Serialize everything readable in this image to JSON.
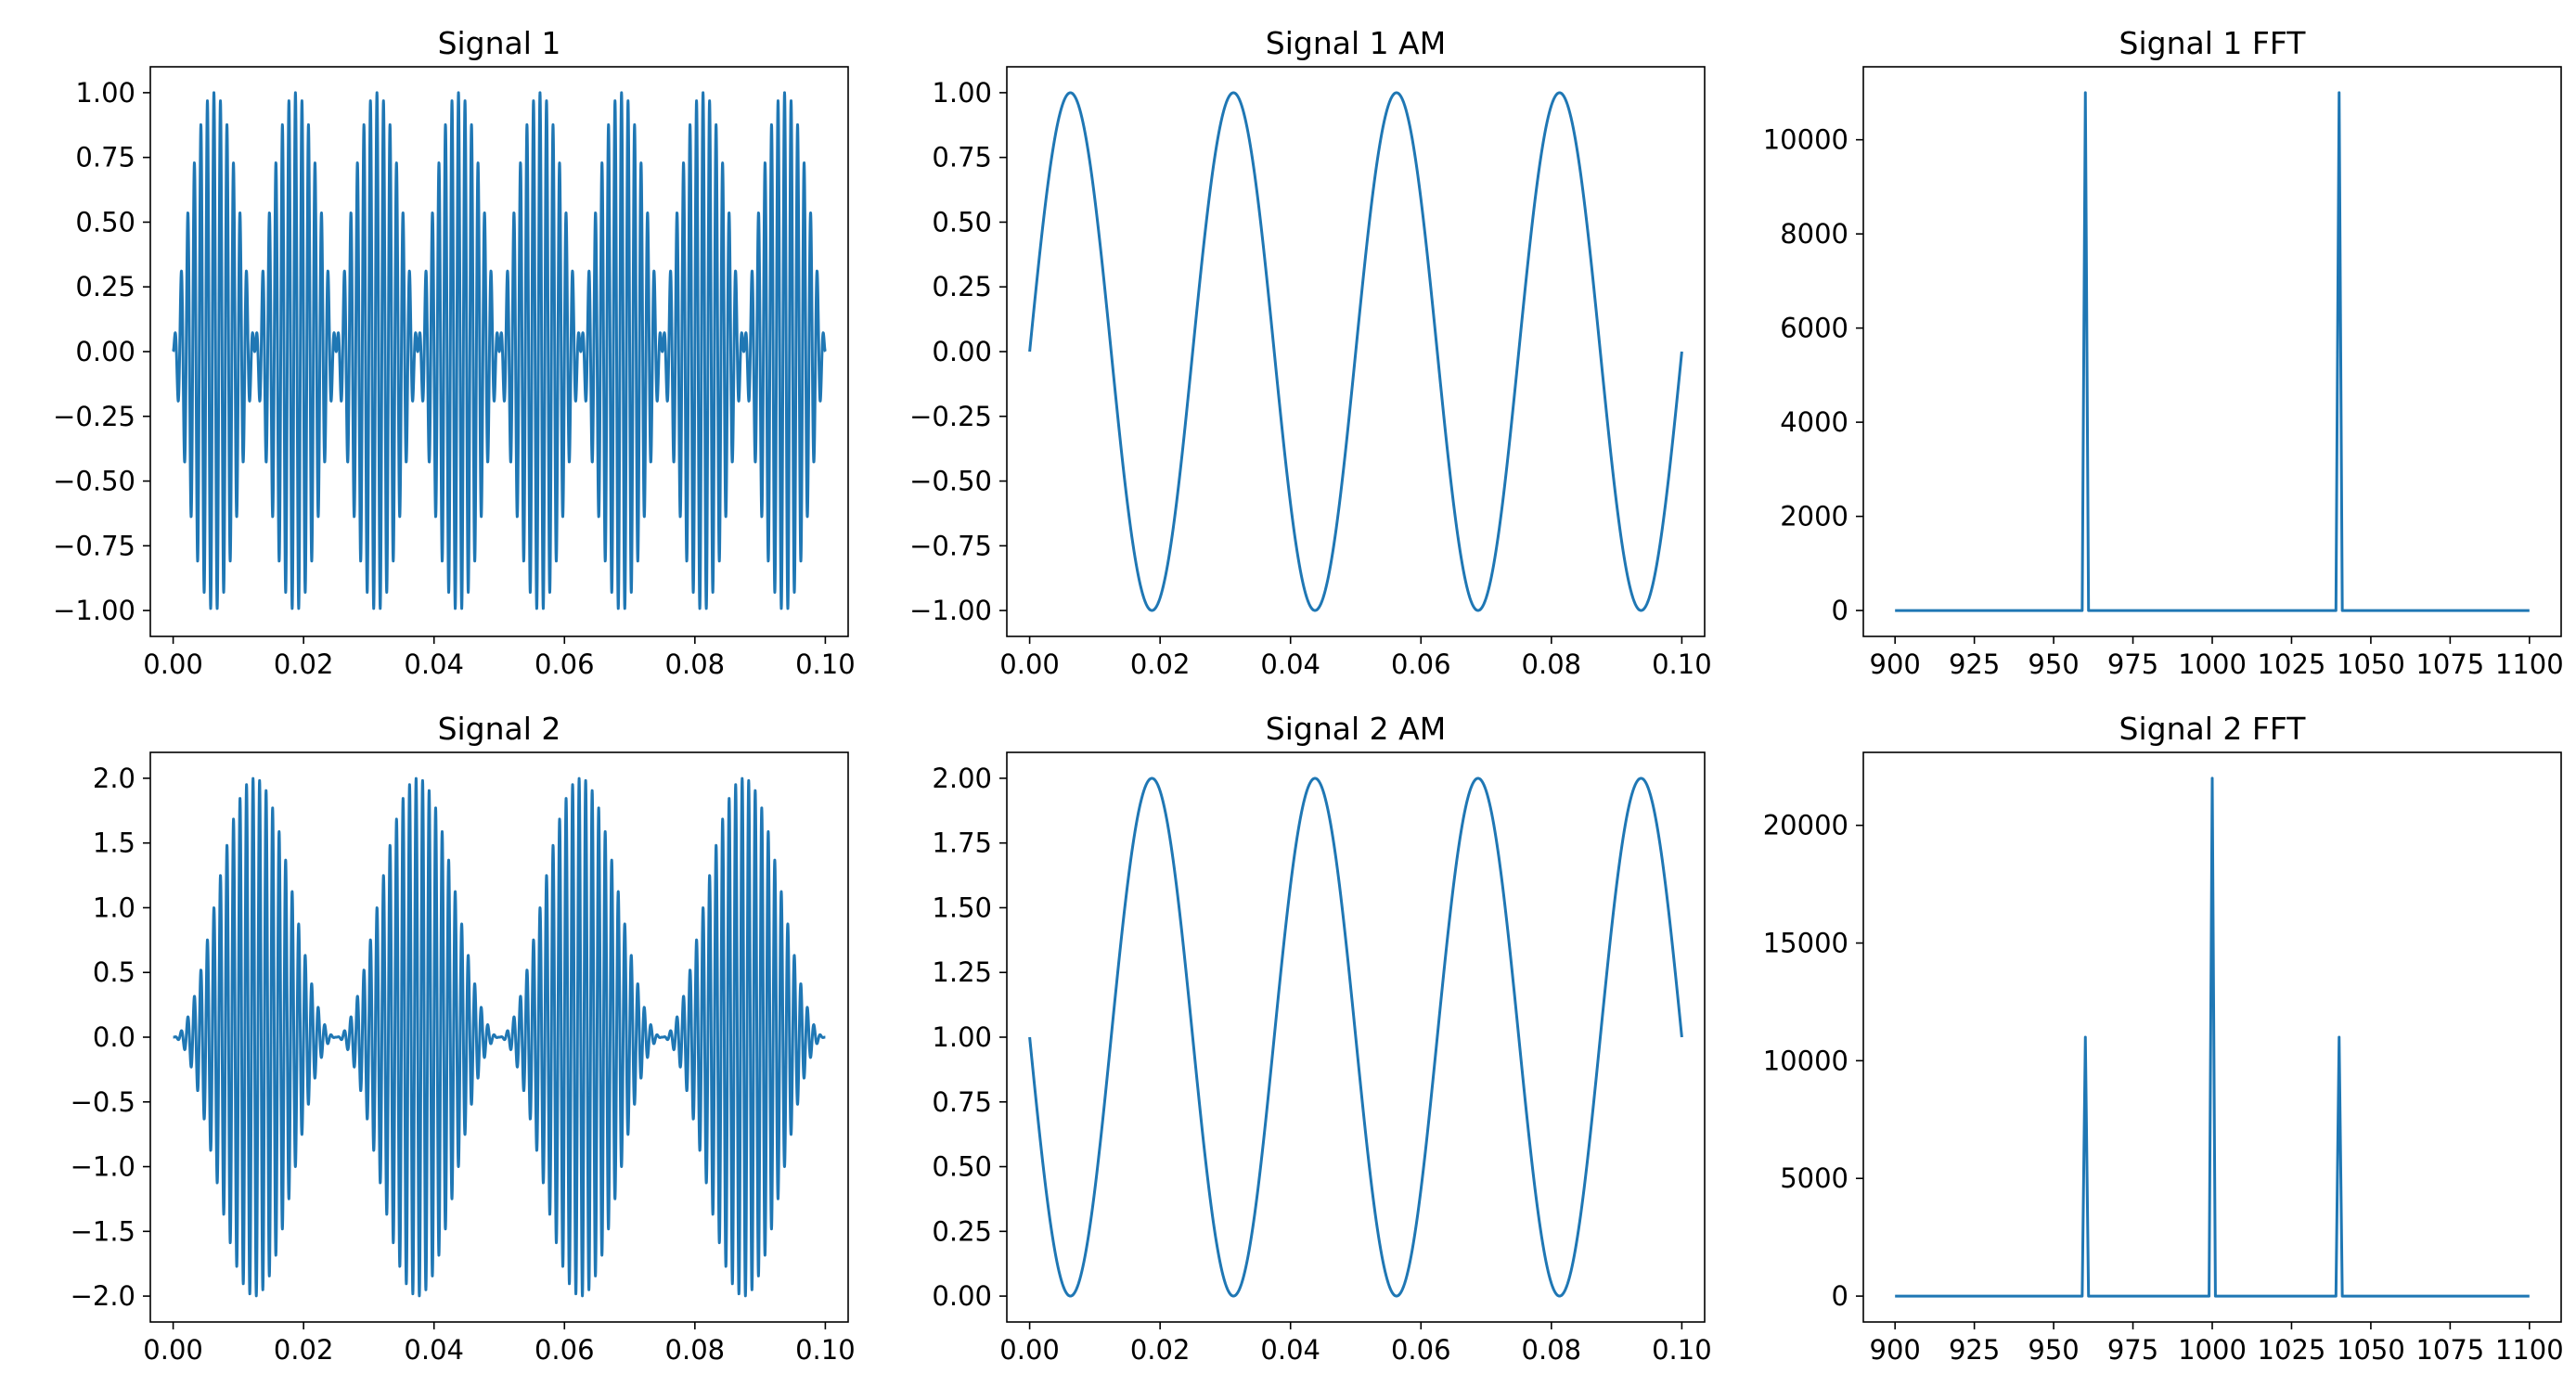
{
  "chart_data": [
    {
      "type": "line",
      "title": "Signal 1",
      "xlabel": "",
      "ylabel": "",
      "xlim": [
        -0.0035,
        0.1035
      ],
      "ylim": [
        -1.1,
        1.1
      ],
      "xticks": [
        0.0,
        0.02,
        0.04,
        0.06,
        0.08,
        0.1
      ],
      "xtick_labels": [
        "0.00",
        "0.02",
        "0.04",
        "0.06",
        "0.08",
        "0.10"
      ],
      "yticks": [
        -1.0,
        -0.75,
        -0.5,
        -0.25,
        0.0,
        0.25,
        0.5,
        0.75,
        1.0
      ],
      "ytick_labels": [
        "−1.00",
        "−0.75",
        "−0.50",
        "−0.25",
        "0.00",
        "0.25",
        "0.50",
        "0.75",
        "1.00"
      ],
      "grid": false,
      "color": "#1f77b4",
      "signal": {
        "kind": "am_dsb",
        "carrier_hz": 1000,
        "modulation_hz": 40,
        "x_start": 0.0,
        "x_end": 0.1,
        "samples": 4000
      }
    },
    {
      "type": "line",
      "title": "Signal 1 AM",
      "xlabel": "",
      "ylabel": "",
      "xlim": [
        -0.0035,
        0.1035
      ],
      "ylim": [
        -1.1,
        1.1
      ],
      "xticks": [
        0.0,
        0.02,
        0.04,
        0.06,
        0.08,
        0.1
      ],
      "xtick_labels": [
        "0.00",
        "0.02",
        "0.04",
        "0.06",
        "0.08",
        "0.10"
      ],
      "yticks": [
        -1.0,
        -0.75,
        -0.5,
        -0.25,
        0.0,
        0.25,
        0.5,
        0.75,
        1.0
      ],
      "ytick_labels": [
        "−1.00",
        "−0.75",
        "−0.50",
        "−0.25",
        "0.00",
        "0.25",
        "0.50",
        "0.75",
        "1.00"
      ],
      "grid": false,
      "color": "#1f77b4",
      "signal": {
        "kind": "sine",
        "frequency_hz": 40,
        "amplitude": 1,
        "offset": 0,
        "x_start": 0.0,
        "x_end": 0.1,
        "samples": 600
      }
    },
    {
      "type": "line",
      "title": "Signal 1 FFT",
      "xlabel": "",
      "ylabel": "",
      "xlim": [
        890,
        1110
      ],
      "ylim": [
        -550,
        11550
      ],
      "xticks": [
        900,
        925,
        950,
        975,
        1000,
        1025,
        1050,
        1075,
        1100
      ],
      "xtick_labels": [
        "900",
        "925",
        "950",
        "975",
        "1000",
        "1025",
        "1050",
        "1075",
        "1100"
      ],
      "yticks": [
        0,
        2000,
        4000,
        6000,
        8000,
        10000
      ],
      "ytick_labels": [
        "0",
        "2000",
        "4000",
        "6000",
        "8000",
        "10000"
      ],
      "grid": false,
      "color": "#1f77b4",
      "x": [
        900,
        959,
        960,
        961,
        1039,
        1040,
        1041,
        1100
      ],
      "y": [
        0,
        0,
        11000,
        0,
        0,
        11000,
        0,
        0
      ]
    },
    {
      "type": "line",
      "title": "Signal 2",
      "xlabel": "",
      "ylabel": "",
      "xlim": [
        -0.0035,
        0.1035
      ],
      "ylim": [
        -2.2,
        2.2
      ],
      "xticks": [
        0.0,
        0.02,
        0.04,
        0.06,
        0.08,
        0.1
      ],
      "xtick_labels": [
        "0.00",
        "0.02",
        "0.04",
        "0.06",
        "0.08",
        "0.10"
      ],
      "yticks": [
        -2.0,
        -1.5,
        -1.0,
        -0.5,
        0.0,
        0.5,
        1.0,
        1.5,
        2.0
      ],
      "ytick_labels": [
        "−2.0",
        "−1.5",
        "−1.0",
        "−0.5",
        "0.0",
        "0.5",
        "1.0",
        "1.5",
        "2.0"
      ],
      "grid": false,
      "color": "#1f77b4",
      "signal": {
        "kind": "am_full",
        "carrier_hz": 1000,
        "modulation_hz": 40,
        "x_start": 0.0,
        "x_end": 0.1,
        "samples": 4000
      }
    },
    {
      "type": "line",
      "title": "Signal 2 AM",
      "xlabel": "",
      "ylabel": "",
      "xlim": [
        -0.0035,
        0.1035
      ],
      "ylim": [
        -0.1,
        2.1
      ],
      "xticks": [
        0.0,
        0.02,
        0.04,
        0.06,
        0.08,
        0.1
      ],
      "xtick_labels": [
        "0.00",
        "0.02",
        "0.04",
        "0.06",
        "0.08",
        "0.10"
      ],
      "yticks": [
        0.0,
        0.25,
        0.5,
        0.75,
        1.0,
        1.25,
        1.5,
        1.75,
        2.0
      ],
      "ytick_labels": [
        "0.00",
        "0.25",
        "0.50",
        "0.75",
        "1.00",
        "1.25",
        "1.50",
        "1.75",
        "2.00"
      ],
      "grid": false,
      "color": "#1f77b4",
      "signal": {
        "kind": "sine",
        "frequency_hz": 40,
        "amplitude": -1,
        "offset": 1,
        "x_start": 0.0,
        "x_end": 0.1,
        "samples": 600
      }
    },
    {
      "type": "line",
      "title": "Signal 2 FFT",
      "xlabel": "",
      "ylabel": "",
      "xlim": [
        890,
        1110
      ],
      "ylim": [
        -1100,
        23100
      ],
      "xticks": [
        900,
        925,
        950,
        975,
        1000,
        1025,
        1050,
        1075,
        1100
      ],
      "xtick_labels": [
        "900",
        "925",
        "950",
        "975",
        "1000",
        "1025",
        "1050",
        "1075",
        "1100"
      ],
      "yticks": [
        0,
        5000,
        10000,
        15000,
        20000
      ],
      "ytick_labels": [
        "0",
        "5000",
        "10000",
        "15000",
        "20000"
      ],
      "grid": false,
      "color": "#1f77b4",
      "x": [
        900,
        959,
        960,
        961,
        999,
        1000,
        1001,
        1039,
        1040,
        1041,
        1100
      ],
      "y": [
        0,
        0,
        11000,
        0,
        0,
        22000,
        0,
        0,
        11000,
        0,
        0
      ]
    }
  ]
}
